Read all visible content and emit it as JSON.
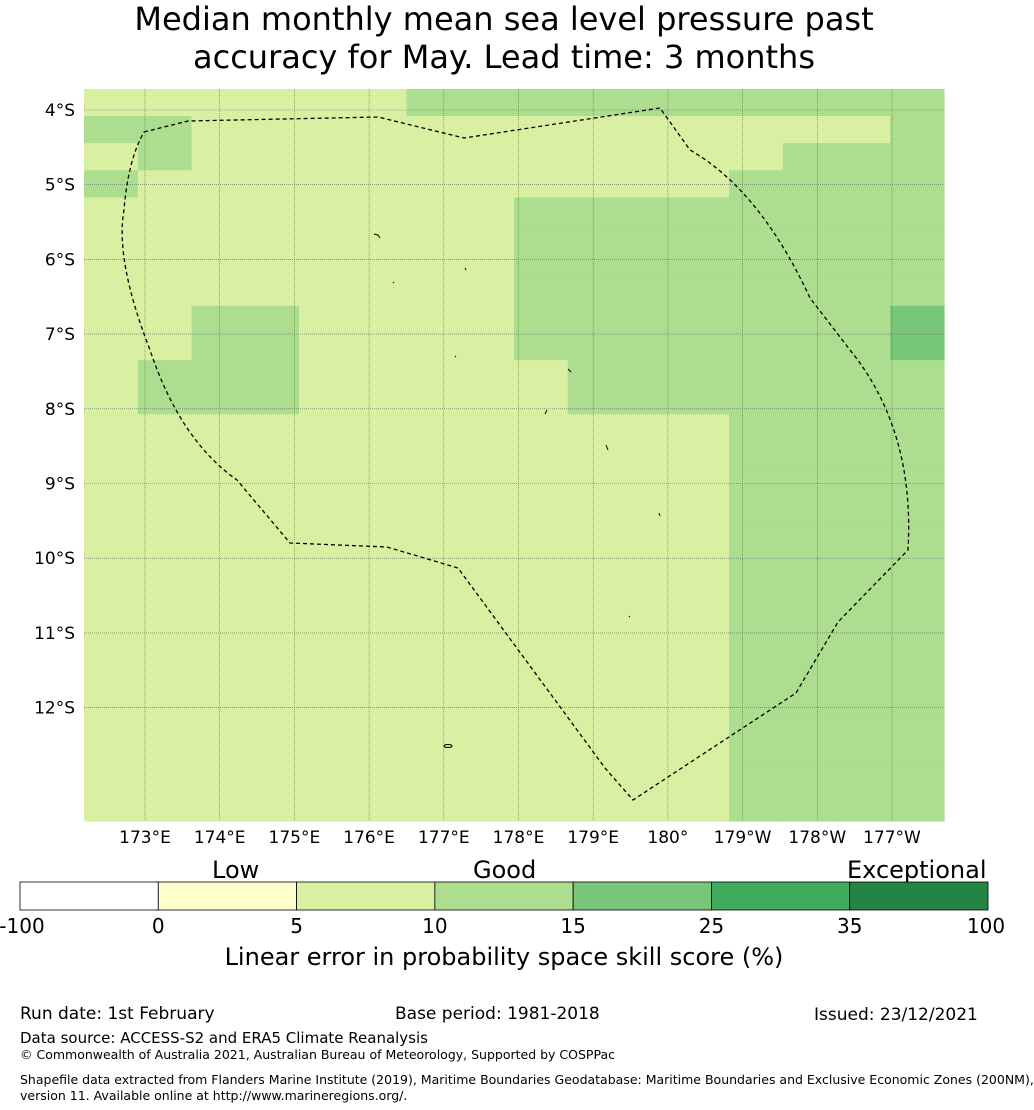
{
  "title": {
    "line1": "Median monthly mean sea level pressure past",
    "line2": "accuracy for May. Lead time: 3 months"
  },
  "map": {
    "lat_labels": [
      "4°S",
      "5°S",
      "6°S",
      "7°S",
      "8°S",
      "9°S",
      "10°S",
      "11°S",
      "12°S"
    ],
    "lon_labels": [
      "173°E",
      "174°E",
      "175°E",
      "176°E",
      "177°E",
      "178°E",
      "179°E",
      "180°",
      "179°W",
      "178°W",
      "177°W"
    ],
    "colors": [
      "#ffffcc",
      "#d9f0a3",
      "#addd8e",
      "#78c679",
      "#41ab5d",
      "#238443"
    ],
    "grid": [
      "1111112222222222",
      "2211111111111112",
      "1211111111111222",
      "2111111111112222",
      "1111111122222222",
      "1111111122222222",
      "1111111122222222",
      "1111111122222222",
      "1122111122222223",
      "1122111122222223",
      "1222111112222222",
      "1222111112222222",
      "1111111111112222",
      "1111111111112222",
      "1111111111112222",
      "1111111111112222",
      "1111111111112222",
      "1111111111112222",
      "1111111111112222",
      "1111111111112222",
      "1111111111112222",
      "1111111111112222",
      "1111111111112222",
      "1111111111112222",
      "1111111111112222",
      "1111111111112222",
      "1111111111112222"
    ]
  },
  "colorbar": {
    "top_labels": [
      "Low",
      "Good",
      "Exceptional"
    ],
    "ticks": [
      "-100",
      "0",
      "5",
      "10",
      "15",
      "25",
      "35",
      "100"
    ],
    "colors": [
      "#ffffff",
      "#ffffcc",
      "#d9f0a3",
      "#addd8e",
      "#78c679",
      "#41ab5d",
      "#238443"
    ],
    "label": "Linear error in probability space skill score (%)"
  },
  "footer": {
    "run_date": "Run date: 1st February",
    "base_period": "Base period: 1981-2018",
    "issued": "Issued: 23/12/2021",
    "data_source": "Data source: ACCESS-S2 and ERA5 Climate Reanalysis",
    "copyright": "© Commonwealth of Australia 2021, Australian Bureau of Meteorology, Supported by COSPPac",
    "shapefile_line1": "Shapefile data extracted from Flanders Marine Institute (2019), Maritime Boundaries Geodatabase: Maritime Boundaries and Exclusive Economic Zones (200NM),",
    "shapefile_line2": "version 11. Available online at http://www.marineregions.org/."
  }
}
